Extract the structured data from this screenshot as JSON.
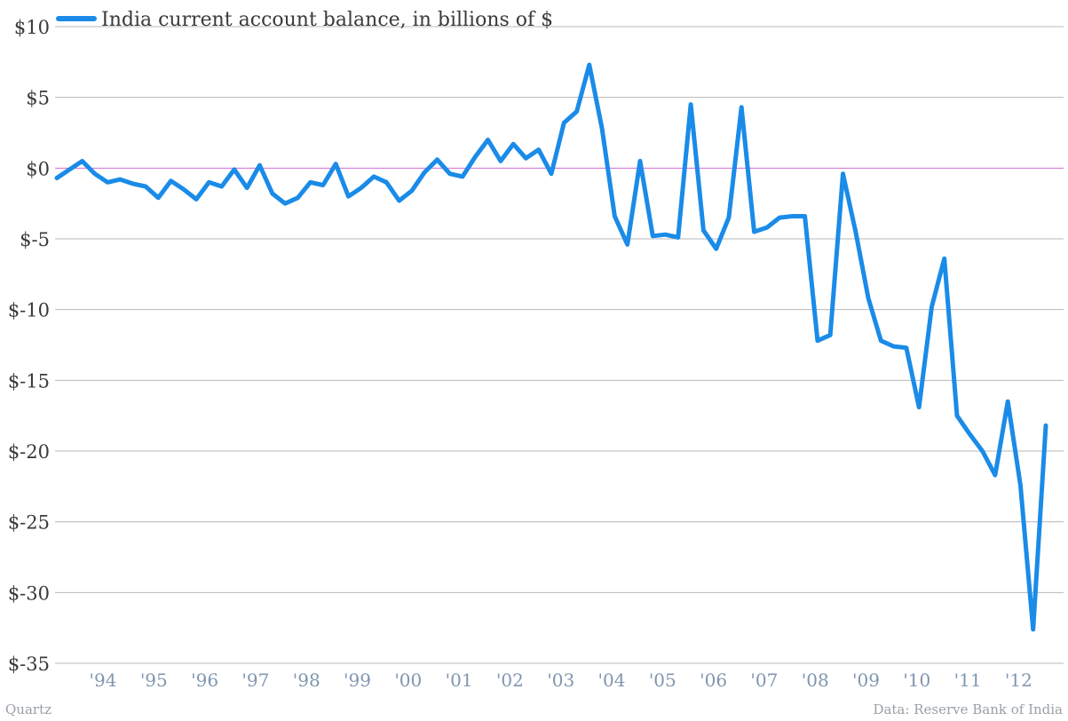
{
  "chart_data": {
    "type": "line",
    "legend": {
      "label": "India current account balance, in billions of $",
      "placement": "top-left"
    },
    "series": [
      {
        "name": "India current account balance, in billions of $",
        "color": "#1a8be8",
        "values": [
          -0.7,
          -0.1,
          0.5,
          -0.4,
          -1.0,
          -0.8,
          -1.1,
          -1.3,
          -2.1,
          -0.9,
          -1.5,
          -2.2,
          -1.0,
          -1.3,
          -0.1,
          -1.4,
          0.2,
          -1.8,
          -2.5,
          -2.1,
          -1.0,
          -1.2,
          0.3,
          -2.0,
          -1.4,
          -0.6,
          -1.0,
          -2.3,
          -1.6,
          -0.3,
          0.6,
          -0.4,
          -0.6,
          0.8,
          2.0,
          0.5,
          1.7,
          0.7,
          1.3,
          -0.4,
          3.2,
          4.0,
          7.3,
          2.8,
          -3.4,
          -5.4,
          0.5,
          -4.8,
          -4.7,
          -4.9,
          4.5,
          -4.4,
          -5.7,
          -3.5,
          4.3,
          -4.5,
          -4.2,
          -3.5,
          -3.4,
          -3.4,
          -12.2,
          -11.8,
          -0.4,
          -4.5,
          -9.2,
          -12.2,
          -12.6,
          -12.7,
          -16.9,
          -9.8,
          -6.4,
          -17.5,
          -18.8,
          -20.0,
          -21.7,
          -16.5,
          -22.4,
          -32.6,
          -18.2
        ]
      }
    ],
    "ylim": [
      -35,
      10
    ],
    "y_ticks": [
      10,
      5,
      0,
      -5,
      -10,
      -15,
      -20,
      -25,
      -30,
      -35
    ],
    "y_tick_labels": [
      "$10",
      "$5",
      "$0",
      "$-5",
      "$-10",
      "$-15",
      "$-20",
      "$-25",
      "$-30",
      "$-35"
    ],
    "x_tick_labels": [
      "'94",
      "'95",
      "'96",
      "'97",
      "'98",
      "'99",
      "'00",
      "'01",
      "'02",
      "'03",
      "'04",
      "'05",
      "'06",
      "'07",
      "'08",
      "'09",
      "'10",
      "'11",
      "'12"
    ],
    "grid": true,
    "zero_line_color": "#d36ad3",
    "grid_color": "#b8b8b8"
  },
  "footer": {
    "left": "Quartz",
    "right": "Data: Reserve Bank of India"
  }
}
